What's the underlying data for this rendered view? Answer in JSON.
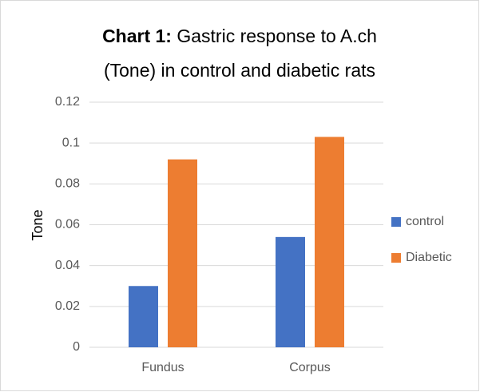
{
  "chart_data": {
    "type": "bar",
    "title_bold": "Chart 1:",
    "title_line1": "Gastric response to A.ch",
    "title_line2": "(Tone)  in control and diabetic rats",
    "ylabel": "Tone",
    "categories": [
      "Fundus",
      "Corpus"
    ],
    "series": [
      {
        "name": "control",
        "color": "#4472c4",
        "values": [
          0.03,
          0.054
        ]
      },
      {
        "name": "Diabetic",
        "color": "#ed7d31",
        "values": [
          0.092,
          0.103
        ]
      }
    ],
    "ylim": [
      0,
      0.12
    ],
    "yticks": [
      0,
      0.02,
      0.04,
      0.06,
      0.08,
      0.1,
      0.12
    ],
    "grid": true,
    "legend": "right"
  }
}
